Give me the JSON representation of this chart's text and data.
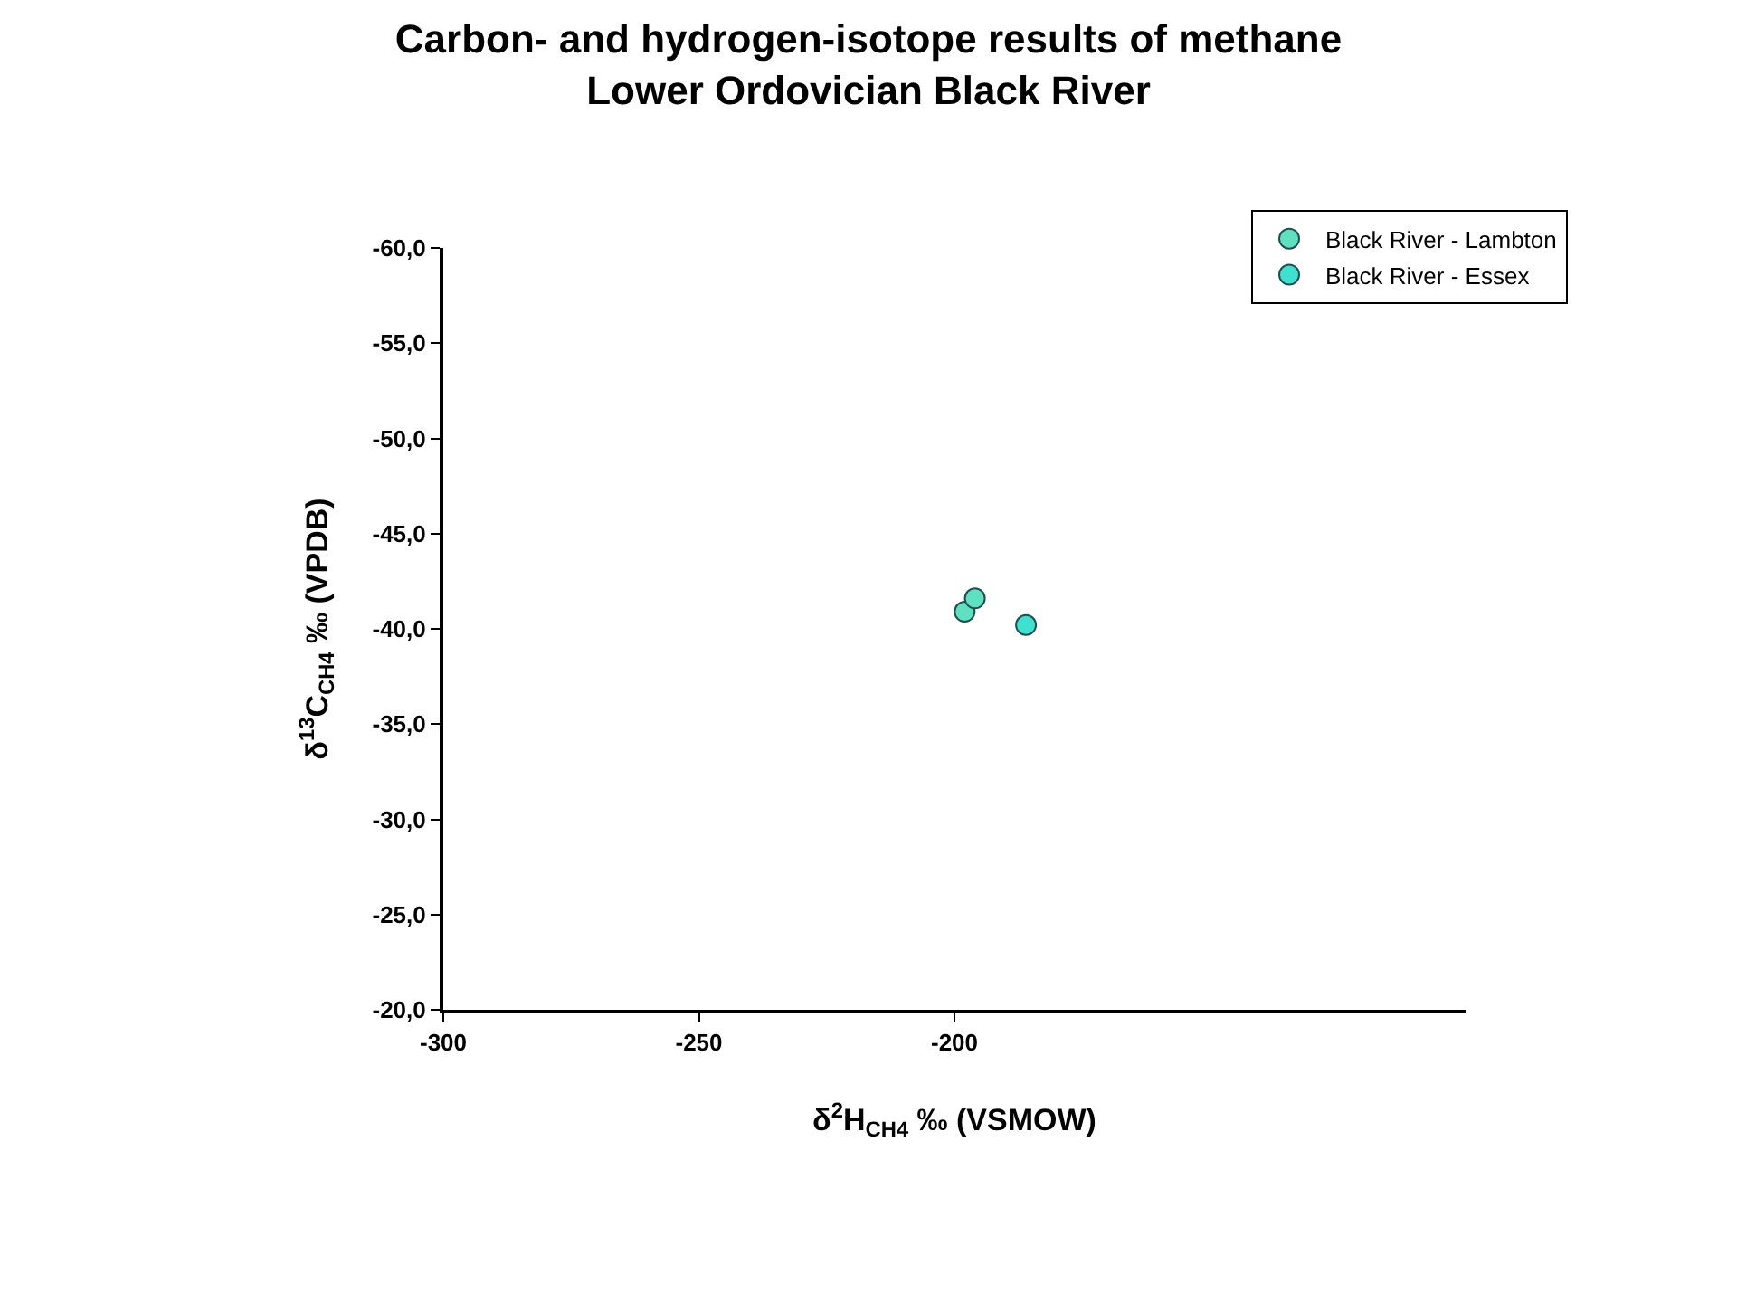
{
  "chart_data": {
    "type": "scatter",
    "title": "Carbon- and hydrogen-isotope results of methane\nLower Ordovician Black River",
    "xlabel": "δ$^{2}$H$_{CH4}$ ‰ (VSMOW)",
    "ylabel": "δ$^{13}$C$_{CH4}$ ‰ (VPDB)",
    "xlim": [
      -300,
      -100
    ],
    "xticks": [
      -300,
      -250,
      -200
    ],
    "ylim": [
      -20,
      -60
    ],
    "yticks": [
      {
        "value": -60,
        "label": "-60,0"
      },
      {
        "value": -55,
        "label": "-55,0"
      },
      {
        "value": -50,
        "label": "-50,0"
      },
      {
        "value": -45,
        "label": "-45,0"
      },
      {
        "value": -40,
        "label": "-40,0"
      },
      {
        "value": -35,
        "label": "-35,0"
      },
      {
        "value": -30,
        "label": "-30,0"
      },
      {
        "value": -25,
        "label": "-25,0"
      },
      {
        "value": -20,
        "label": "-20,0"
      }
    ],
    "marker": "circle",
    "legend": "top right",
    "series": [
      {
        "name": "Black River - Lambton",
        "color": "#5fe0c0",
        "x": [
          -198,
          -196
        ],
        "values": [
          -40.9,
          -41.6
        ]
      },
      {
        "name": "Black River - Essex",
        "color": "#40e0d0",
        "x": [
          -186
        ],
        "values": [
          -40.2
        ]
      }
    ]
  }
}
